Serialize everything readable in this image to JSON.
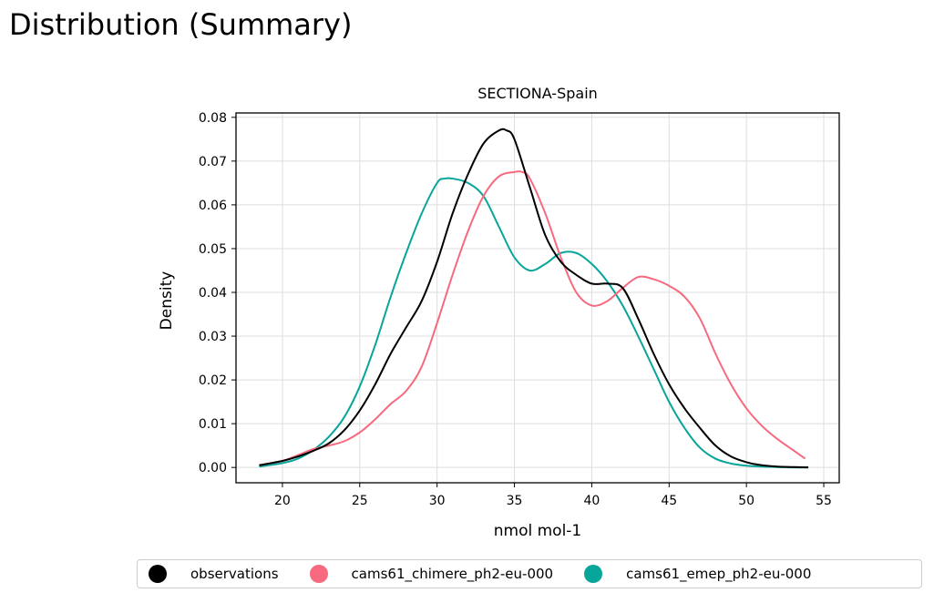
{
  "page": {
    "title": "Distribution (Summary)"
  },
  "chart_data": {
    "type": "line",
    "title": "SECTIONA-Spain",
    "xlabel": "nmol mol-1",
    "ylabel": "Density",
    "xlim": [
      17,
      56
    ],
    "ylim": [
      -0.0035,
      0.081
    ],
    "xticks": [
      20,
      25,
      30,
      35,
      40,
      45,
      50,
      55
    ],
    "yticks": [
      0.0,
      0.01,
      0.02,
      0.03,
      0.04,
      0.05,
      0.06,
      0.07,
      0.08
    ],
    "ytick_labels": [
      "0.00",
      "0.01",
      "0.02",
      "0.03",
      "0.04",
      "0.05",
      "0.06",
      "0.07",
      "0.08"
    ],
    "grid": true,
    "legend_position": "bottom",
    "series": [
      {
        "name": "observations",
        "color": "#000000",
        "x": [
          18.5,
          20,
          21,
          22,
          23,
          24,
          25,
          26,
          27,
          28,
          29,
          30,
          31,
          32,
          33,
          34,
          34.5,
          35,
          36,
          37,
          38,
          39,
          40,
          41,
          42,
          43,
          44,
          45,
          46,
          47,
          48,
          49,
          50,
          51,
          52,
          53,
          54
        ],
        "y": [
          0.0005,
          0.0015,
          0.0025,
          0.0038,
          0.0055,
          0.0085,
          0.013,
          0.019,
          0.026,
          0.032,
          0.038,
          0.047,
          0.058,
          0.067,
          0.074,
          0.077,
          0.077,
          0.075,
          0.064,
          0.053,
          0.047,
          0.044,
          0.042,
          0.042,
          0.041,
          0.034,
          0.026,
          0.019,
          0.0135,
          0.009,
          0.005,
          0.0025,
          0.0012,
          0.0005,
          0.0002,
          0.0001,
          0.0
        ]
      },
      {
        "name": "cams61_chimere_ph2-eu-000",
        "color": "#f7697e",
        "x": [
          18.5,
          20,
          21,
          22,
          23,
          24,
          25,
          26,
          27,
          28,
          29,
          30,
          31,
          32,
          33,
          34,
          35,
          35.5,
          36,
          37,
          38,
          39,
          40,
          41,
          42,
          43,
          44,
          45,
          46,
          47,
          48,
          49,
          50,
          51,
          52,
          53,
          53.8
        ],
        "y": [
          0.0005,
          0.0015,
          0.0028,
          0.0042,
          0.005,
          0.006,
          0.008,
          0.011,
          0.0145,
          0.0175,
          0.023,
          0.033,
          0.044,
          0.054,
          0.062,
          0.0665,
          0.0675,
          0.0675,
          0.066,
          0.058,
          0.048,
          0.04,
          0.037,
          0.038,
          0.041,
          0.0435,
          0.043,
          0.0415,
          0.039,
          0.034,
          0.026,
          0.019,
          0.0135,
          0.0095,
          0.0065,
          0.004,
          0.002
        ]
      },
      {
        "name": "cams61_emep_ph2-eu-000",
        "color": "#07a59a",
        "x": [
          18.5,
          20,
          21,
          22,
          23,
          24,
          25,
          26,
          27,
          28,
          29,
          30,
          30.5,
          31,
          32,
          33,
          34,
          35,
          36,
          37,
          38,
          39,
          40,
          41,
          42,
          43,
          44,
          45,
          46,
          47,
          48,
          49,
          50,
          51,
          52,
          53,
          54
        ],
        "y": [
          0.0002,
          0.001,
          0.002,
          0.004,
          0.007,
          0.0115,
          0.0185,
          0.028,
          0.039,
          0.049,
          0.058,
          0.065,
          0.066,
          0.066,
          0.065,
          0.062,
          0.055,
          0.048,
          0.045,
          0.0465,
          0.049,
          0.049,
          0.0465,
          0.0425,
          0.037,
          0.03,
          0.0225,
          0.015,
          0.009,
          0.0045,
          0.002,
          0.0009,
          0.0004,
          0.0002,
          0.0001,
          0.0,
          0.0
        ]
      }
    ]
  }
}
